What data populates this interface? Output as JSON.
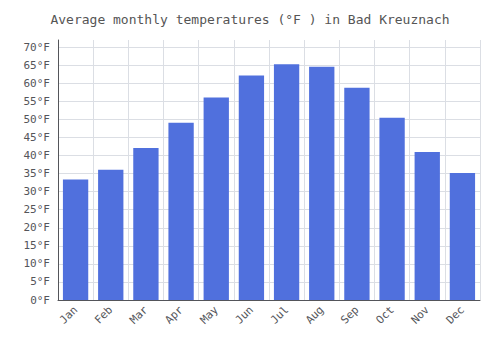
{
  "chart_data": {
    "type": "bar",
    "title": "Average monthly temperatures (°F ) in Bad Kreuznach",
    "categories": [
      "Jan",
      "Feb",
      "Mar",
      "Apr",
      "May",
      "Jun",
      "Jul",
      "Aug",
      "Sep",
      "Oct",
      "Nov",
      "Dec"
    ],
    "values": [
      33.4,
      36.1,
      42.1,
      49.1,
      56.1,
      62.2,
      65.3,
      64.6,
      58.8,
      50.5,
      41.0,
      35.2
    ],
    "ylim": [
      0,
      72
    ],
    "yticks": [
      {
        "value": 0,
        "label": "0°F"
      },
      {
        "value": 5,
        "label": "5°F"
      },
      {
        "value": 10,
        "label": "10°F"
      },
      {
        "value": 15,
        "label": "15°F"
      },
      {
        "value": 20,
        "label": "20°F"
      },
      {
        "value": 25,
        "label": "25°F"
      },
      {
        "value": 30,
        "label": "30°F"
      },
      {
        "value": 35,
        "label": "35°F"
      },
      {
        "value": 40,
        "label": "40°F"
      },
      {
        "value": 45,
        "label": "45°F"
      },
      {
        "value": 50,
        "label": "50°F"
      },
      {
        "value": 55,
        "label": "55°F"
      },
      {
        "value": 60,
        "label": "60°F"
      },
      {
        "value": 65,
        "label": "65°F"
      },
      {
        "value": 70,
        "label": "70°F"
      }
    ],
    "grid": true
  }
}
